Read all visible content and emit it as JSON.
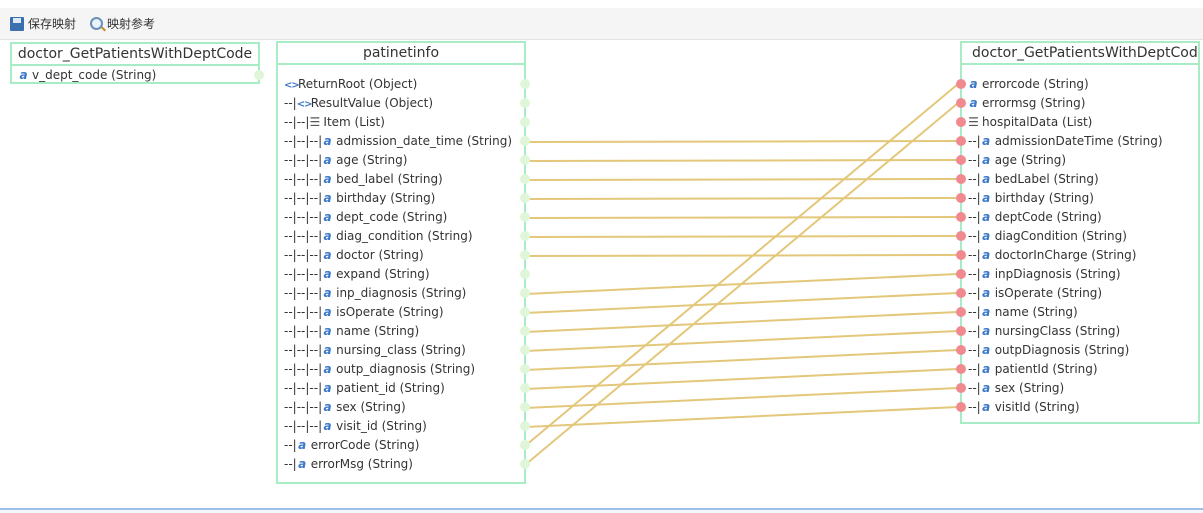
{
  "toolbar": {
    "save_label": "保存映射",
    "reference_label": "映射参考"
  },
  "source": {
    "title": "doctor_GetPatientsWithDeptCode",
    "rows": [
      {
        "prefix": "",
        "icon": "string",
        "label": "v_dept_code (String)"
      }
    ]
  },
  "middle": {
    "title": "patinetinfo",
    "rows": [
      {
        "prefix": "",
        "icon": "object",
        "label": "ReturnRoot (Object)"
      },
      {
        "prefix": "--|",
        "icon": "object",
        "label": "ResultValue (Object)"
      },
      {
        "prefix": "--|--|",
        "icon": "list",
        "label": "Item (List)"
      },
      {
        "prefix": "--|--|--|",
        "icon": "string",
        "label": "admission_date_time (String)"
      },
      {
        "prefix": "--|--|--|",
        "icon": "string",
        "label": "age (String)"
      },
      {
        "prefix": "--|--|--|",
        "icon": "string",
        "label": "bed_label (String)"
      },
      {
        "prefix": "--|--|--|",
        "icon": "string",
        "label": "birthday (String)"
      },
      {
        "prefix": "--|--|--|",
        "icon": "string",
        "label": "dept_code (String)"
      },
      {
        "prefix": "--|--|--|",
        "icon": "string",
        "label": "diag_condition (String)"
      },
      {
        "prefix": "--|--|--|",
        "icon": "string",
        "label": "doctor (String)"
      },
      {
        "prefix": "--|--|--|",
        "icon": "string",
        "label": "expand (String)"
      },
      {
        "prefix": "--|--|--|",
        "icon": "string",
        "label": "inp_diagnosis (String)"
      },
      {
        "prefix": "--|--|--|",
        "icon": "string",
        "label": "isOperate (String)"
      },
      {
        "prefix": "--|--|--|",
        "icon": "string",
        "label": "name (String)"
      },
      {
        "prefix": "--|--|--|",
        "icon": "string",
        "label": "nursing_class (String)"
      },
      {
        "prefix": "--|--|--|",
        "icon": "string",
        "label": "outp_diagnosis (String)"
      },
      {
        "prefix": "--|--|--|",
        "icon": "string",
        "label": "patient_id (String)"
      },
      {
        "prefix": "--|--|--|",
        "icon": "string",
        "label": "sex (String)"
      },
      {
        "prefix": "--|--|--|",
        "icon": "string",
        "label": "visit_id (String)"
      },
      {
        "prefix": "--|",
        "icon": "string",
        "label": "errorCode (String)"
      },
      {
        "prefix": "--|",
        "icon": "string",
        "label": "errorMsg (String)"
      }
    ]
  },
  "target": {
    "title": "doctor_GetPatientsWithDeptCode",
    "rows": [
      {
        "prefix": "",
        "icon": "string",
        "label": "errorcode (String)"
      },
      {
        "prefix": "",
        "icon": "string",
        "label": "errormsg (String)"
      },
      {
        "prefix": "",
        "icon": "list",
        "label": "hospitalData (List)"
      },
      {
        "prefix": "--|",
        "icon": "string",
        "label": "admissionDateTime (String)"
      },
      {
        "prefix": "--|",
        "icon": "string",
        "label": "age (String)"
      },
      {
        "prefix": "--|",
        "icon": "string",
        "label": "bedLabel (String)"
      },
      {
        "prefix": "--|",
        "icon": "string",
        "label": "birthday (String)"
      },
      {
        "prefix": "--|",
        "icon": "string",
        "label": "deptCode (String)"
      },
      {
        "prefix": "--|",
        "icon": "string",
        "label": "diagCondition (String)"
      },
      {
        "prefix": "--|",
        "icon": "string",
        "label": "doctorInCharge (String)"
      },
      {
        "prefix": "--|",
        "icon": "string",
        "label": "inpDiagnosis (String)"
      },
      {
        "prefix": "--|",
        "icon": "string",
        "label": "isOperate (String)"
      },
      {
        "prefix": "--|",
        "icon": "string",
        "label": "name (String)"
      },
      {
        "prefix": "--|",
        "icon": "string",
        "label": "nursingClass (String)"
      },
      {
        "prefix": "--|",
        "icon": "string",
        "label": "outpDiagnosis (String)"
      },
      {
        "prefix": "--|",
        "icon": "string",
        "label": "patientId (String)"
      },
      {
        "prefix": "--|",
        "icon": "string",
        "label": "sex (String)"
      },
      {
        "prefix": "--|",
        "icon": "string",
        "label": "visitId (String)"
      }
    ]
  },
  "mappings": [
    [
      "admission_date_time",
      "admissionDateTime"
    ],
    [
      "age",
      "age"
    ],
    [
      "bed_label",
      "bedLabel"
    ],
    [
      "birthday",
      "birthday"
    ],
    [
      "dept_code",
      "deptCode"
    ],
    [
      "diag_condition",
      "diagCondition"
    ],
    [
      "doctor",
      "doctorInCharge"
    ],
    [
      "inp_diagnosis",
      "inpDiagnosis"
    ],
    [
      "isOperate",
      "isOperate"
    ],
    [
      "name",
      "name"
    ],
    [
      "nursing_class",
      "nursingClass"
    ],
    [
      "outp_diagnosis",
      "outpDiagnosis"
    ],
    [
      "patient_id",
      "patientId"
    ],
    [
      "sex",
      "sex"
    ],
    [
      "visit_id",
      "visitId"
    ],
    [
      "errorCode",
      "errorcode"
    ],
    [
      "errorMsg",
      "errormsg"
    ]
  ],
  "colors": {
    "box_border": "#a8ecc6",
    "link": "#e3c77a",
    "target_dot": "#f08a8f",
    "source_dot": "#dff7d8"
  }
}
